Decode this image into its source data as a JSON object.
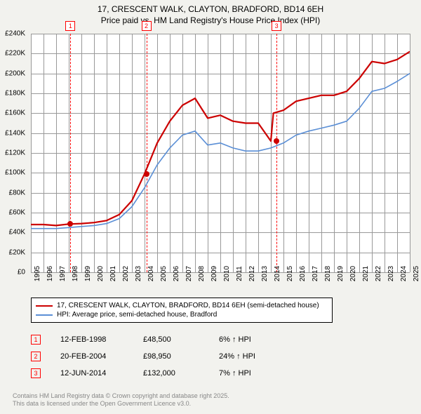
{
  "title_line1": "17, CRESCENT WALK, CLAYTON, BRADFORD, BD14 6EH",
  "title_line2": "Price paid vs. HM Land Registry's House Price Index (HPI)",
  "chart": {
    "background_color": "#ffffff",
    "page_background": "#f2f2ee",
    "grid_color": "#999999",
    "x_years": [
      1995,
      1996,
      1997,
      1998,
      1999,
      2000,
      2001,
      2002,
      2003,
      2004,
      2005,
      2006,
      2007,
      2008,
      2009,
      2010,
      2011,
      2012,
      2013,
      2014,
      2015,
      2016,
      2017,
      2018,
      2019,
      2020,
      2021,
      2022,
      2023,
      2024,
      2025
    ],
    "ylim": [
      0,
      240000
    ],
    "ytick_step": 20000,
    "ytick_labels": [
      "£0",
      "£20K",
      "£40K",
      "£60K",
      "£80K",
      "£100K",
      "£120K",
      "£140K",
      "£160K",
      "£180K",
      "£200K",
      "£220K",
      "£240K"
    ],
    "series": [
      {
        "name": "17, CRESCENT WALK, CLAYTON, BRADFORD, BD14 6EH (semi-detached house)",
        "color": "#cc0000",
        "width": 2.2,
        "points": [
          [
            1995,
            48000
          ],
          [
            1996,
            48000
          ],
          [
            1997,
            47000
          ],
          [
            1998,
            48500
          ],
          [
            1999,
            49000
          ],
          [
            2000,
            50000
          ],
          [
            2001,
            52000
          ],
          [
            2002,
            58000
          ],
          [
            2003,
            72000
          ],
          [
            2004,
            98950
          ],
          [
            2005,
            130000
          ],
          [
            2006,
            152000
          ],
          [
            2007,
            168000
          ],
          [
            2008,
            175000
          ],
          [
            2009,
            155000
          ],
          [
            2010,
            158000
          ],
          [
            2011,
            152000
          ],
          [
            2012,
            150000
          ],
          [
            2013,
            150000
          ],
          [
            2014,
            132000
          ],
          [
            2014.2,
            160000
          ],
          [
            2015,
            163000
          ],
          [
            2016,
            172000
          ],
          [
            2017,
            175000
          ],
          [
            2018,
            178000
          ],
          [
            2019,
            178000
          ],
          [
            2020,
            182000
          ],
          [
            2021,
            195000
          ],
          [
            2022,
            212000
          ],
          [
            2023,
            210000
          ],
          [
            2024,
            214000
          ],
          [
            2025,
            222000
          ]
        ]
      },
      {
        "name": "HPI: Average price, semi-detached house, Bradford",
        "color": "#5b8fd6",
        "width": 1.6,
        "points": [
          [
            1995,
            44000
          ],
          [
            1996,
            44000
          ],
          [
            1997,
            44000
          ],
          [
            1998,
            45000
          ],
          [
            1999,
            46000
          ],
          [
            2000,
            47000
          ],
          [
            2001,
            49000
          ],
          [
            2002,
            54000
          ],
          [
            2003,
            66000
          ],
          [
            2004,
            85000
          ],
          [
            2005,
            108000
          ],
          [
            2006,
            125000
          ],
          [
            2007,
            138000
          ],
          [
            2008,
            142000
          ],
          [
            2009,
            128000
          ],
          [
            2010,
            130000
          ],
          [
            2011,
            125000
          ],
          [
            2012,
            122000
          ],
          [
            2013,
            122000
          ],
          [
            2014,
            125000
          ],
          [
            2015,
            130000
          ],
          [
            2016,
            138000
          ],
          [
            2017,
            142000
          ],
          [
            2018,
            145000
          ],
          [
            2019,
            148000
          ],
          [
            2020,
            152000
          ],
          [
            2021,
            165000
          ],
          [
            2022,
            182000
          ],
          [
            2023,
            185000
          ],
          [
            2024,
            192000
          ],
          [
            2025,
            200000
          ]
        ]
      }
    ],
    "markers": [
      {
        "idx": "1",
        "year": 1998.13,
        "value": 48500
      },
      {
        "idx": "2",
        "year": 2004.14,
        "value": 98950
      },
      {
        "idx": "3",
        "year": 2014.45,
        "value": 132000
      }
    ]
  },
  "legend": [
    {
      "color": "#cc0000",
      "label": "17, CRESCENT WALK, CLAYTON, BRADFORD, BD14 6EH (semi-detached house)"
    },
    {
      "color": "#5b8fd6",
      "label": "HPI: Average price, semi-detached house, Bradford"
    }
  ],
  "sales": [
    {
      "idx": "1",
      "date": "12-FEB-1998",
      "price": "£48,500",
      "delta": "6% ↑ HPI"
    },
    {
      "idx": "2",
      "date": "20-FEB-2004",
      "price": "£98,950",
      "delta": "24% ↑ HPI"
    },
    {
      "idx": "3",
      "date": "12-JUN-2014",
      "price": "£132,000",
      "delta": "7% ↑ HPI"
    }
  ],
  "footer_line1": "Contains HM Land Registry data © Crown copyright and database right 2025.",
  "footer_line2": "This data is licensed under the Open Government Licence v3.0."
}
